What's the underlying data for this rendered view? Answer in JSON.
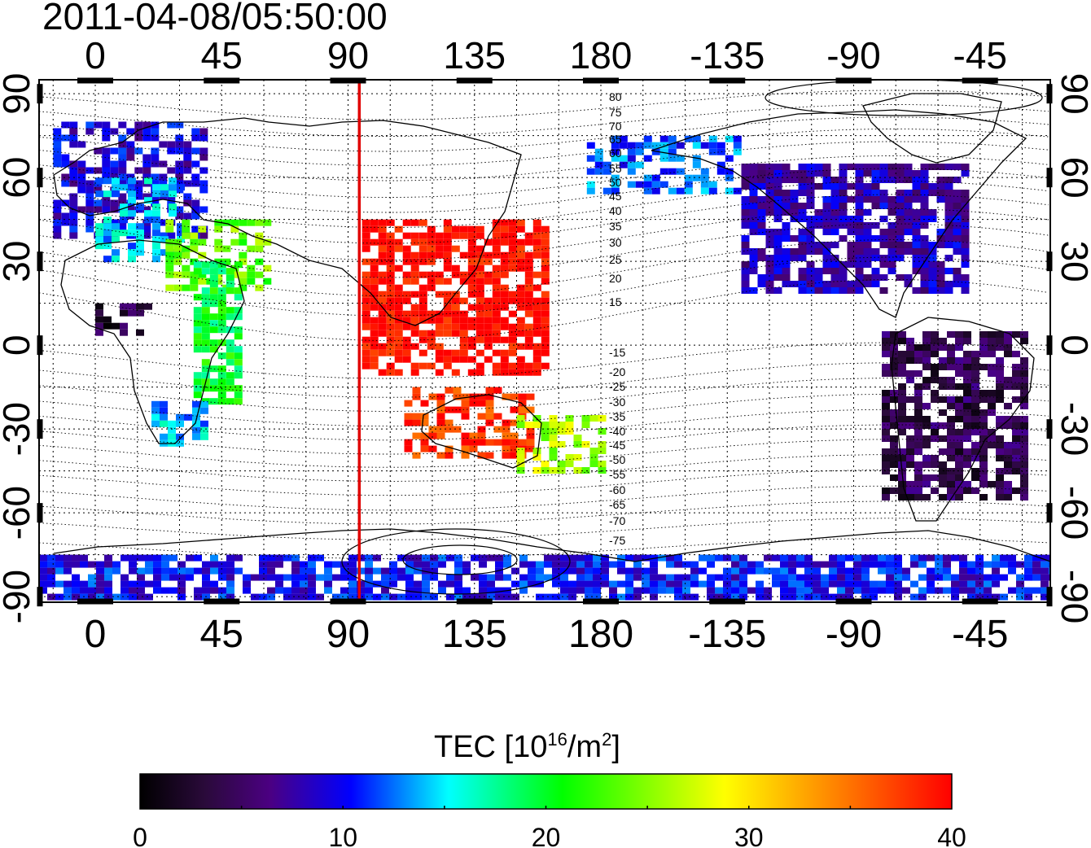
{
  "title": "2011-04-08/05:50:00",
  "map": {
    "x_ticks": [
      "0",
      "45",
      "90",
      "135",
      "180",
      "-135",
      "-90",
      "-45"
    ],
    "y_ticks_left": [
      "90",
      "60",
      "30",
      "0",
      "-30",
      "-60",
      "-90"
    ],
    "y_ticks_right": [
      "90",
      "60",
      "30",
      "0",
      "-30",
      "-60",
      "-90"
    ],
    "xlim": [
      -20,
      340
    ],
    "ylim": [
      -92,
      95
    ],
    "marker_longitude": 94,
    "marker_color": "#e00000",
    "contour_labels_north": [
      "80",
      "75",
      "70",
      "65",
      "60",
      "55",
      "50",
      "45",
      "40",
      "35",
      "30",
      "25",
      "20",
      "15"
    ],
    "contour_labels_south": [
      "-15",
      "-20",
      "-25",
      "-30",
      "-35",
      "-40",
      "-45",
      "-50",
      "-55",
      "-60",
      "-65",
      "-70",
      "-75"
    ]
  },
  "colorbar": {
    "label_main": "TEC  [10",
    "label_sup": "16",
    "label_mid": "/m",
    "label_sup2": "2",
    "label_end": "]",
    "ticks": [
      "0",
      "10",
      "20",
      "30",
      "40"
    ],
    "range": [
      0,
      40
    ],
    "colors": [
      "#000000",
      "#4b0082",
      "#0000ff",
      "#00ffff",
      "#00ff00",
      "#ffff00",
      "#ff8000",
      "#ff0000"
    ]
  },
  "chart_data": {
    "type": "heatmap",
    "title": "2011-04-08/05:50:00",
    "colorbar_label": "TEC [10^16/m^2]",
    "colorbar_range": [
      0,
      40
    ],
    "regions": [
      {
        "lon": [
          -15,
          40
        ],
        "lat": [
          40,
          80
        ],
        "tec": 9
      },
      {
        "lon": [
          0,
          30
        ],
        "lat": [
          30,
          60
        ],
        "tec": 14
      },
      {
        "lon": [
          25,
          60
        ],
        "lat": [
          20,
          45
        ],
        "tec": 24
      },
      {
        "lon": [
          35,
          50
        ],
        "lat": [
          -20,
          30
        ],
        "tec": 20
      },
      {
        "lon": [
          0,
          20
        ],
        "lat": [
          5,
          15
        ],
        "tec": 3
      },
      {
        "lon": [
          20,
          40
        ],
        "lat": [
          -35,
          -20
        ],
        "tec": 14
      },
      {
        "lon": [
          95,
          160
        ],
        "lat": [
          -10,
          45
        ],
        "tec": 40
      },
      {
        "lon": [
          110,
          155
        ],
        "lat": [
          -40,
          -15
        ],
        "tec": 38
      },
      {
        "lon": [
          150,
          180
        ],
        "lat": [
          -45,
          -25
        ],
        "tec": 26
      },
      {
        "lon": [
          175,
          230
        ],
        "lat": [
          55,
          75
        ],
        "tec": 12
      },
      {
        "lon": [
          230,
          310
        ],
        "lat": [
          20,
          65
        ],
        "tec": 8
      },
      {
        "lon": [
          280,
          330
        ],
        "lat": [
          -55,
          5
        ],
        "tec": 4
      },
      {
        "lon": [
          -20,
          340
        ],
        "lat": [
          -90,
          -75
        ],
        "tec": 10
      }
    ]
  }
}
